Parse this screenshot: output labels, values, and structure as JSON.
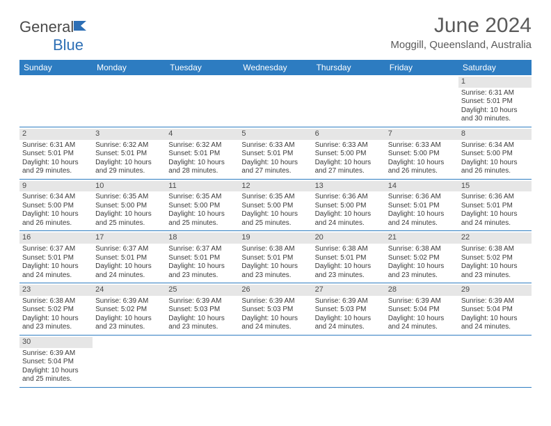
{
  "brand": {
    "text1": "General",
    "text2": "Blue"
  },
  "title": "June 2024",
  "location": "Moggill, Queensland, Australia",
  "colors": {
    "header_bg": "#2d7cc1",
    "header_text": "#ffffff",
    "daynum_bg": "#e6e6e6",
    "border": "#2d7cc1",
    "body_text": "#3a3a3a",
    "title_text": "#5a5a5a"
  },
  "fontsize": {
    "title": 30,
    "subtitle": 15,
    "dow": 12,
    "daynum": 11,
    "body": 10
  },
  "days_of_week": [
    "Sunday",
    "Monday",
    "Tuesday",
    "Wednesday",
    "Thursday",
    "Friday",
    "Saturday"
  ],
  "weeks": [
    [
      {
        "n": "",
        "sr": "",
        "ss": "",
        "dl": ""
      },
      {
        "n": "",
        "sr": "",
        "ss": "",
        "dl": ""
      },
      {
        "n": "",
        "sr": "",
        "ss": "",
        "dl": ""
      },
      {
        "n": "",
        "sr": "",
        "ss": "",
        "dl": ""
      },
      {
        "n": "",
        "sr": "",
        "ss": "",
        "dl": ""
      },
      {
        "n": "",
        "sr": "",
        "ss": "",
        "dl": ""
      },
      {
        "n": "1",
        "sr": "Sunrise: 6:31 AM",
        "ss": "Sunset: 5:01 PM",
        "dl": "Daylight: 10 hours and 30 minutes."
      }
    ],
    [
      {
        "n": "2",
        "sr": "Sunrise: 6:31 AM",
        "ss": "Sunset: 5:01 PM",
        "dl": "Daylight: 10 hours and 29 minutes."
      },
      {
        "n": "3",
        "sr": "Sunrise: 6:32 AM",
        "ss": "Sunset: 5:01 PM",
        "dl": "Daylight: 10 hours and 29 minutes."
      },
      {
        "n": "4",
        "sr": "Sunrise: 6:32 AM",
        "ss": "Sunset: 5:01 PM",
        "dl": "Daylight: 10 hours and 28 minutes."
      },
      {
        "n": "5",
        "sr": "Sunrise: 6:33 AM",
        "ss": "Sunset: 5:01 PM",
        "dl": "Daylight: 10 hours and 27 minutes."
      },
      {
        "n": "6",
        "sr": "Sunrise: 6:33 AM",
        "ss": "Sunset: 5:00 PM",
        "dl": "Daylight: 10 hours and 27 minutes."
      },
      {
        "n": "7",
        "sr": "Sunrise: 6:33 AM",
        "ss": "Sunset: 5:00 PM",
        "dl": "Daylight: 10 hours and 26 minutes."
      },
      {
        "n": "8",
        "sr": "Sunrise: 6:34 AM",
        "ss": "Sunset: 5:00 PM",
        "dl": "Daylight: 10 hours and 26 minutes."
      }
    ],
    [
      {
        "n": "9",
        "sr": "Sunrise: 6:34 AM",
        "ss": "Sunset: 5:00 PM",
        "dl": "Daylight: 10 hours and 26 minutes."
      },
      {
        "n": "10",
        "sr": "Sunrise: 6:35 AM",
        "ss": "Sunset: 5:00 PM",
        "dl": "Daylight: 10 hours and 25 minutes."
      },
      {
        "n": "11",
        "sr": "Sunrise: 6:35 AM",
        "ss": "Sunset: 5:00 PM",
        "dl": "Daylight: 10 hours and 25 minutes."
      },
      {
        "n": "12",
        "sr": "Sunrise: 6:35 AM",
        "ss": "Sunset: 5:00 PM",
        "dl": "Daylight: 10 hours and 25 minutes."
      },
      {
        "n": "13",
        "sr": "Sunrise: 6:36 AM",
        "ss": "Sunset: 5:00 PM",
        "dl": "Daylight: 10 hours and 24 minutes."
      },
      {
        "n": "14",
        "sr": "Sunrise: 6:36 AM",
        "ss": "Sunset: 5:01 PM",
        "dl": "Daylight: 10 hours and 24 minutes."
      },
      {
        "n": "15",
        "sr": "Sunrise: 6:36 AM",
        "ss": "Sunset: 5:01 PM",
        "dl": "Daylight: 10 hours and 24 minutes."
      }
    ],
    [
      {
        "n": "16",
        "sr": "Sunrise: 6:37 AM",
        "ss": "Sunset: 5:01 PM",
        "dl": "Daylight: 10 hours and 24 minutes."
      },
      {
        "n": "17",
        "sr": "Sunrise: 6:37 AM",
        "ss": "Sunset: 5:01 PM",
        "dl": "Daylight: 10 hours and 24 minutes."
      },
      {
        "n": "18",
        "sr": "Sunrise: 6:37 AM",
        "ss": "Sunset: 5:01 PM",
        "dl": "Daylight: 10 hours and 23 minutes."
      },
      {
        "n": "19",
        "sr": "Sunrise: 6:38 AM",
        "ss": "Sunset: 5:01 PM",
        "dl": "Daylight: 10 hours and 23 minutes."
      },
      {
        "n": "20",
        "sr": "Sunrise: 6:38 AM",
        "ss": "Sunset: 5:01 PM",
        "dl": "Daylight: 10 hours and 23 minutes."
      },
      {
        "n": "21",
        "sr": "Sunrise: 6:38 AM",
        "ss": "Sunset: 5:02 PM",
        "dl": "Daylight: 10 hours and 23 minutes."
      },
      {
        "n": "22",
        "sr": "Sunrise: 6:38 AM",
        "ss": "Sunset: 5:02 PM",
        "dl": "Daylight: 10 hours and 23 minutes."
      }
    ],
    [
      {
        "n": "23",
        "sr": "Sunrise: 6:38 AM",
        "ss": "Sunset: 5:02 PM",
        "dl": "Daylight: 10 hours and 23 minutes."
      },
      {
        "n": "24",
        "sr": "Sunrise: 6:39 AM",
        "ss": "Sunset: 5:02 PM",
        "dl": "Daylight: 10 hours and 23 minutes."
      },
      {
        "n": "25",
        "sr": "Sunrise: 6:39 AM",
        "ss": "Sunset: 5:03 PM",
        "dl": "Daylight: 10 hours and 23 minutes."
      },
      {
        "n": "26",
        "sr": "Sunrise: 6:39 AM",
        "ss": "Sunset: 5:03 PM",
        "dl": "Daylight: 10 hours and 24 minutes."
      },
      {
        "n": "27",
        "sr": "Sunrise: 6:39 AM",
        "ss": "Sunset: 5:03 PM",
        "dl": "Daylight: 10 hours and 24 minutes."
      },
      {
        "n": "28",
        "sr": "Sunrise: 6:39 AM",
        "ss": "Sunset: 5:04 PM",
        "dl": "Daylight: 10 hours and 24 minutes."
      },
      {
        "n": "29",
        "sr": "Sunrise: 6:39 AM",
        "ss": "Sunset: 5:04 PM",
        "dl": "Daylight: 10 hours and 24 minutes."
      }
    ],
    [
      {
        "n": "30",
        "sr": "Sunrise: 6:39 AM",
        "ss": "Sunset: 5:04 PM",
        "dl": "Daylight: 10 hours and 25 minutes."
      },
      {
        "n": "",
        "sr": "",
        "ss": "",
        "dl": ""
      },
      {
        "n": "",
        "sr": "",
        "ss": "",
        "dl": ""
      },
      {
        "n": "",
        "sr": "",
        "ss": "",
        "dl": ""
      },
      {
        "n": "",
        "sr": "",
        "ss": "",
        "dl": ""
      },
      {
        "n": "",
        "sr": "",
        "ss": "",
        "dl": ""
      },
      {
        "n": "",
        "sr": "",
        "ss": "",
        "dl": ""
      }
    ]
  ]
}
